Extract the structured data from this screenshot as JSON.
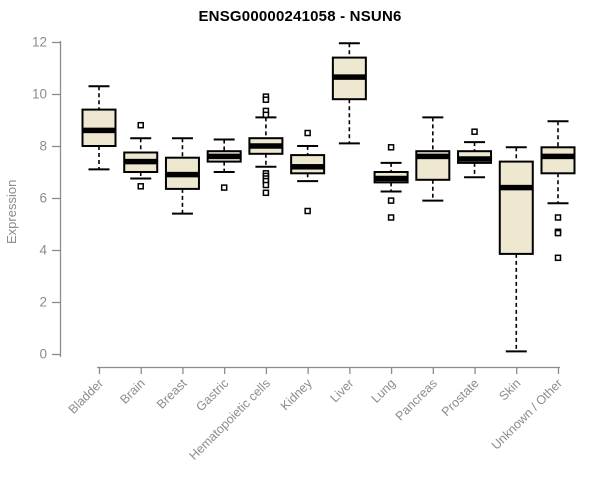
{
  "chart_data": {
    "type": "boxplot",
    "title": "ENSG00000241058 - NSUN6",
    "ylabel": "Expression",
    "xlabel": "",
    "ylim": [
      0,
      12
    ],
    "yticks": [
      0,
      2,
      4,
      6,
      8,
      10,
      12
    ],
    "grid": false,
    "legend": false,
    "colors": {
      "box_fill": "#EFE8D0",
      "box_stroke": "#000000",
      "median": "#000000",
      "axis": "#8C8C8C",
      "tick_label": "#8C8C8C",
      "title": "#000000"
    },
    "categories": [
      "Bladder",
      "Brain",
      "Breast",
      "Gastric",
      "Hematopoietic cells",
      "Kidney",
      "Liver",
      "Lung",
      "Pancreas",
      "Prostate",
      "Skin",
      "Unknown / Other"
    ],
    "boxes": [
      {
        "category": "Bladder",
        "whisker_low": 7.1,
        "q1": 8.0,
        "median": 8.6,
        "q3": 9.4,
        "whisker_high": 10.3,
        "outliers": []
      },
      {
        "category": "Brain",
        "whisker_low": 6.75,
        "q1": 7.0,
        "median": 7.4,
        "q3": 7.75,
        "whisker_high": 8.3,
        "outliers": [
          8.8,
          6.45
        ]
      },
      {
        "category": "Breast",
        "whisker_low": 5.4,
        "q1": 6.35,
        "median": 6.9,
        "q3": 7.55,
        "whisker_high": 8.3,
        "outliers": []
      },
      {
        "category": "Gastric",
        "whisker_low": 7.0,
        "q1": 7.4,
        "median": 7.6,
        "q3": 7.8,
        "whisker_high": 8.25,
        "outliers": [
          6.4
        ]
      },
      {
        "category": "Hematopoietic cells",
        "whisker_low": 7.2,
        "q1": 7.7,
        "median": 8.0,
        "q3": 8.3,
        "whisker_high": 9.1,
        "outliers": [
          9.9,
          9.78,
          9.35,
          9.2,
          6.95,
          6.85,
          6.75,
          6.65,
          6.5,
          6.2
        ]
      },
      {
        "category": "Kidney",
        "whisker_low": 6.65,
        "q1": 6.95,
        "median": 7.2,
        "q3": 7.65,
        "whisker_high": 8.0,
        "outliers": [
          8.5,
          5.5
        ]
      },
      {
        "category": "Liver",
        "whisker_low": 8.1,
        "q1": 9.8,
        "median": 10.65,
        "q3": 11.4,
        "whisker_high": 11.95,
        "outliers": []
      },
      {
        "category": "Lung",
        "whisker_low": 6.25,
        "q1": 6.6,
        "median": 6.75,
        "q3": 7.0,
        "whisker_high": 7.35,
        "outliers": [
          7.95,
          5.9,
          5.25
        ]
      },
      {
        "category": "Pancreas",
        "whisker_low": 5.9,
        "q1": 6.7,
        "median": 7.6,
        "q3": 7.8,
        "whisker_high": 9.1,
        "outliers": []
      },
      {
        "category": "Prostate",
        "whisker_low": 6.8,
        "q1": 7.35,
        "median": 7.5,
        "q3": 7.8,
        "whisker_high": 8.15,
        "outliers": [
          8.55
        ]
      },
      {
        "category": "Skin",
        "whisker_low": 0.1,
        "q1": 3.85,
        "median": 6.4,
        "q3": 7.4,
        "whisker_high": 7.95,
        "outliers": []
      },
      {
        "category": "Unknown / Other",
        "whisker_low": 5.8,
        "q1": 6.95,
        "median": 7.6,
        "q3": 7.95,
        "whisker_high": 8.95,
        "outliers": [
          5.25,
          4.7,
          4.65,
          3.7
        ]
      }
    ]
  }
}
